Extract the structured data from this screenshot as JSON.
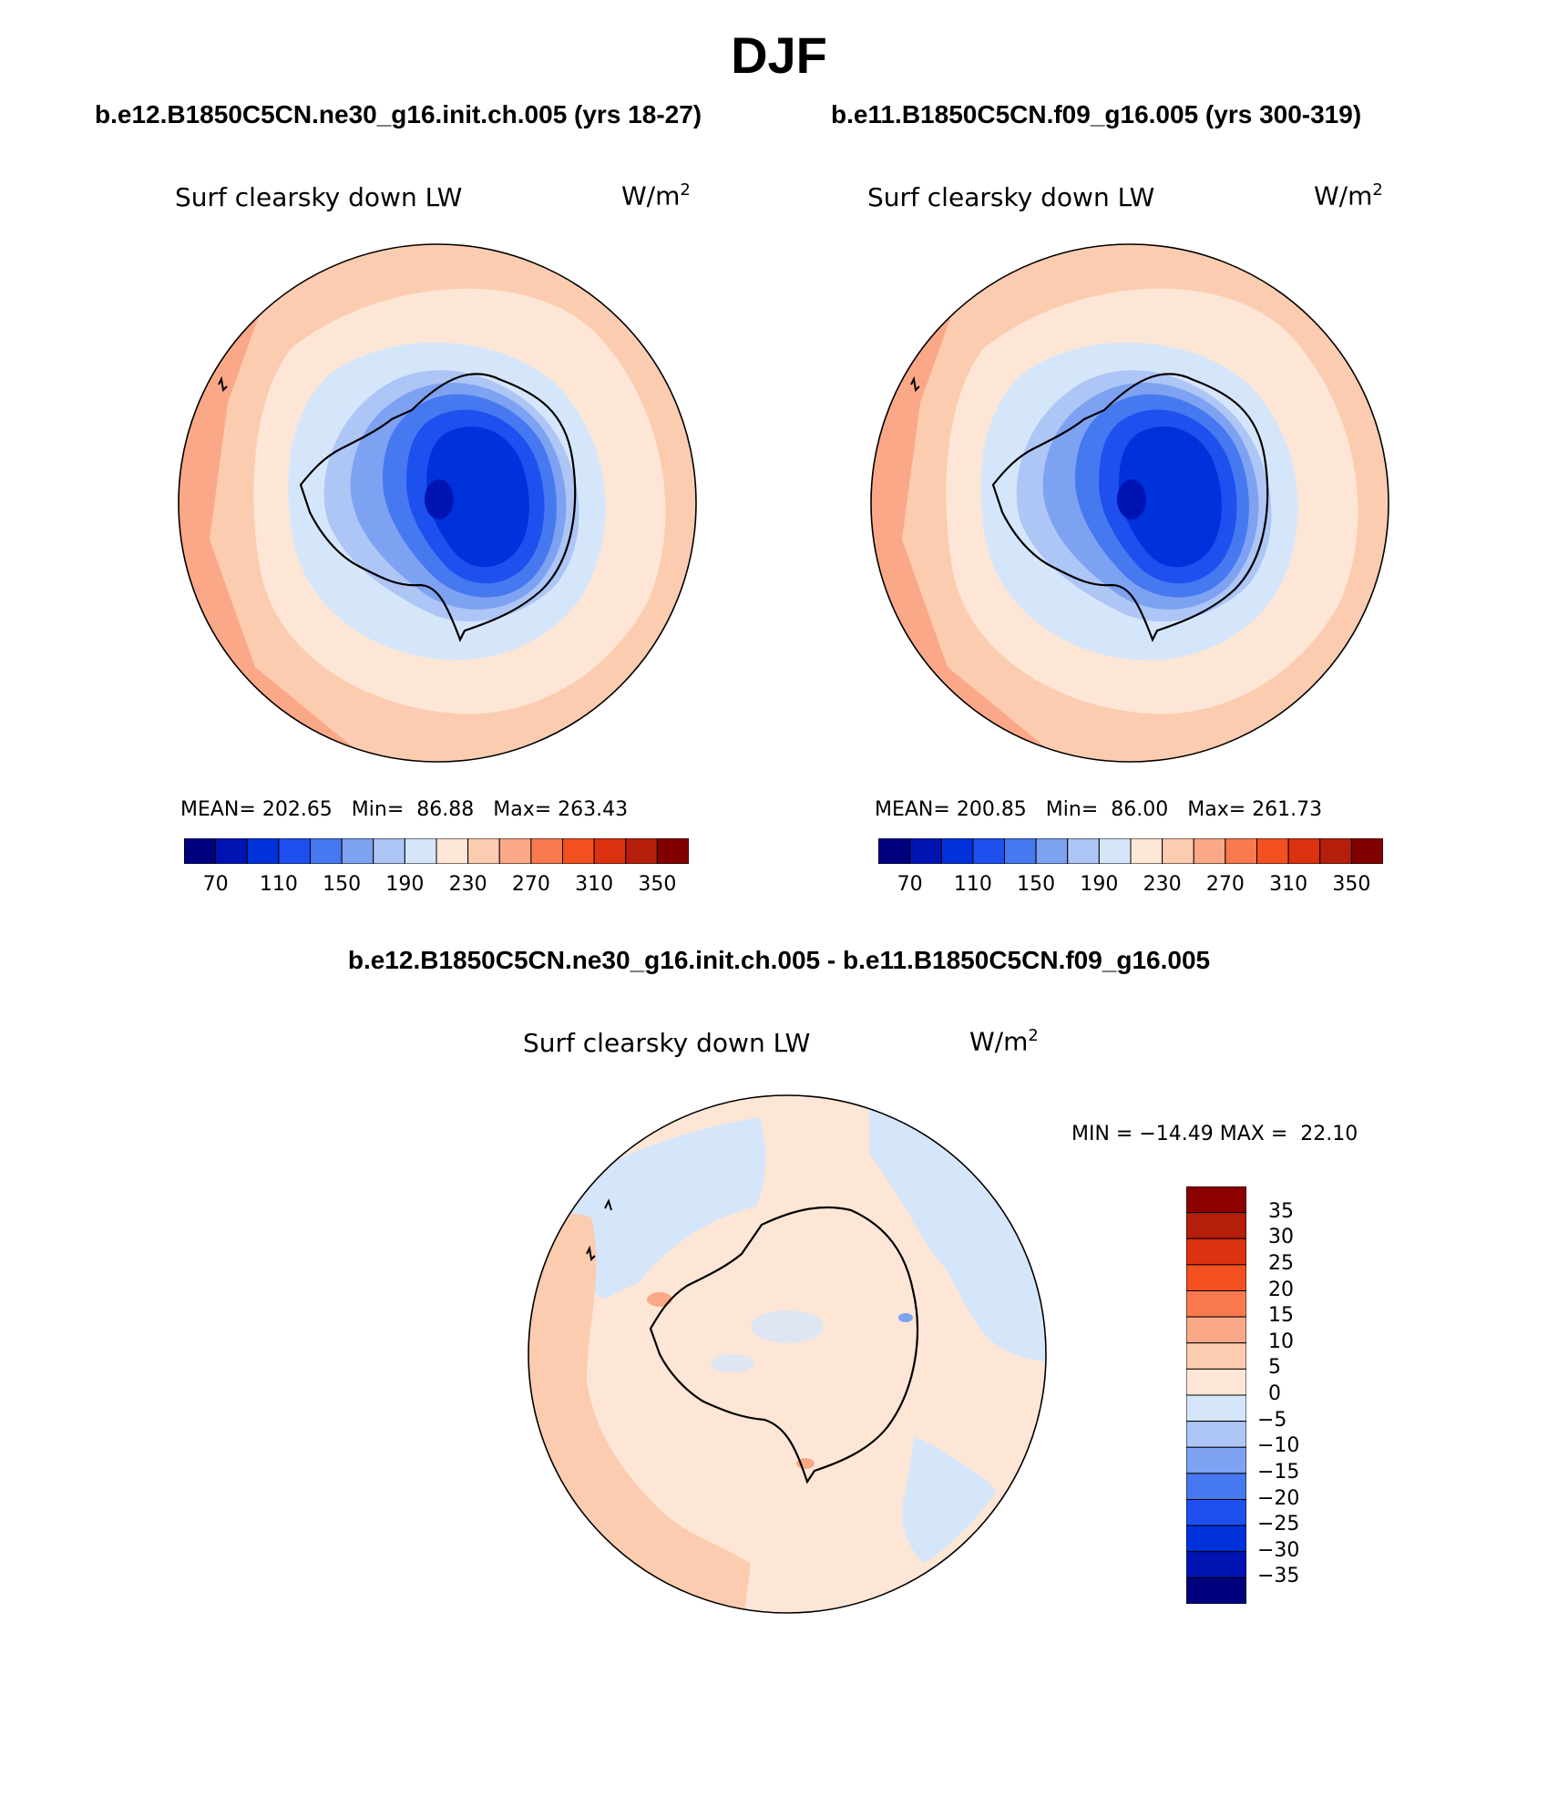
{
  "title": "DJF",
  "panels": [
    {
      "case": "b.e12.B1850C5CN.ne30_g16.init.ch.005 (yrs 18-27)",
      "variable": "Surf clearsky down LW",
      "units": "W/m",
      "units_exp": "2",
      "stats": {
        "mean_label": "MEAN=",
        "mean": "202.65",
        "min_label": "Min=",
        "min": "86.88",
        "max_label": "Max=",
        "max": "263.43"
      }
    },
    {
      "case": "b.e11.B1850C5CN.f09_g16.005 (yrs 300-319)",
      "variable": "Surf clearsky down LW",
      "units": "W/m",
      "units_exp": "2",
      "stats": {
        "mean_label": "MEAN=",
        "mean": "200.85",
        "min_label": "Min=",
        "min": "86.00",
        "max_label": "Max=",
        "max": "261.73"
      }
    }
  ],
  "abs_colorbar": {
    "tick_labels": [
      "70",
      "110",
      "150",
      "190",
      "230",
      "270",
      "310",
      "350"
    ],
    "levels": [
      70,
      90,
      110,
      130,
      150,
      170,
      190,
      210,
      230,
      250,
      270,
      290,
      310,
      330,
      350
    ],
    "colors": [
      "#00007f",
      "#0014b4",
      "#0032dc",
      "#1e50f0",
      "#4678f0",
      "#7ea2f2",
      "#aec6f6",
      "#d6e6fa",
      "#fde6d6",
      "#fcccb0",
      "#fba888",
      "#fa7a50",
      "#f2501e",
      "#dc3210",
      "#b41e0a",
      "#820000"
    ]
  },
  "diff_panel": {
    "title": "b.e12.B1850C5CN.ne30_g16.init.ch.005 - b.e11.B1850C5CN.f09_g16.005",
    "variable": "Surf clearsky down LW",
    "units": "W/m",
    "units_exp": "2",
    "minmax": "MIN = −14.49 MAX =  22.10",
    "colorbar_labels": [
      "35",
      "30",
      "25",
      "20",
      "15",
      "10",
      "5",
      "0",
      "−5",
      "−10",
      "−15",
      "−20",
      "−25",
      "−30",
      "−35"
    ],
    "colors_top_to_bottom": [
      "#8c0000",
      "#b41e0a",
      "#dc3210",
      "#f2501e",
      "#fa7a50",
      "#fba888",
      "#fcccb0",
      "#fde6d6",
      "#d6e6fa",
      "#aec6f6",
      "#7ea2f2",
      "#4678f0",
      "#1e50f0",
      "#0032dc",
      "#0014b4",
      "#00007f"
    ]
  },
  "chart_data": [
    {
      "type": "heatmap",
      "projection": "south polar stereographic",
      "title": "b.e12.B1850C5CN.ne30_g16.init.ch.005 (yrs 18-27)",
      "variable": "Surf clearsky down LW",
      "units": "W/m2",
      "mean": 202.65,
      "min": 86.88,
      "max": 263.43,
      "contour_levels": [
        70,
        90,
        110,
        130,
        150,
        170,
        190,
        210,
        230,
        250,
        270,
        290,
        310,
        330,
        350
      ]
    },
    {
      "type": "heatmap",
      "projection": "south polar stereographic",
      "title": "b.e11.B1850C5CN.f09_g16.005 (yrs 300-319)",
      "variable": "Surf clearsky down LW",
      "units": "W/m2",
      "mean": 200.85,
      "min": 86.0,
      "max": 261.73,
      "contour_levels": [
        70,
        90,
        110,
        130,
        150,
        170,
        190,
        210,
        230,
        250,
        270,
        290,
        310,
        330,
        350
      ]
    },
    {
      "type": "heatmap",
      "projection": "south polar stereographic",
      "title": "b.e12.B1850C5CN.ne30_g16.init.ch.005 - b.e11.B1850C5CN.f09_g16.005",
      "variable": "Surf clearsky down LW",
      "units": "W/m2",
      "min": -14.49,
      "max": 22.1,
      "contour_levels": [
        -35,
        -30,
        -25,
        -20,
        -15,
        -10,
        -5,
        0,
        5,
        10,
        15,
        20,
        25,
        30,
        35
      ]
    }
  ]
}
